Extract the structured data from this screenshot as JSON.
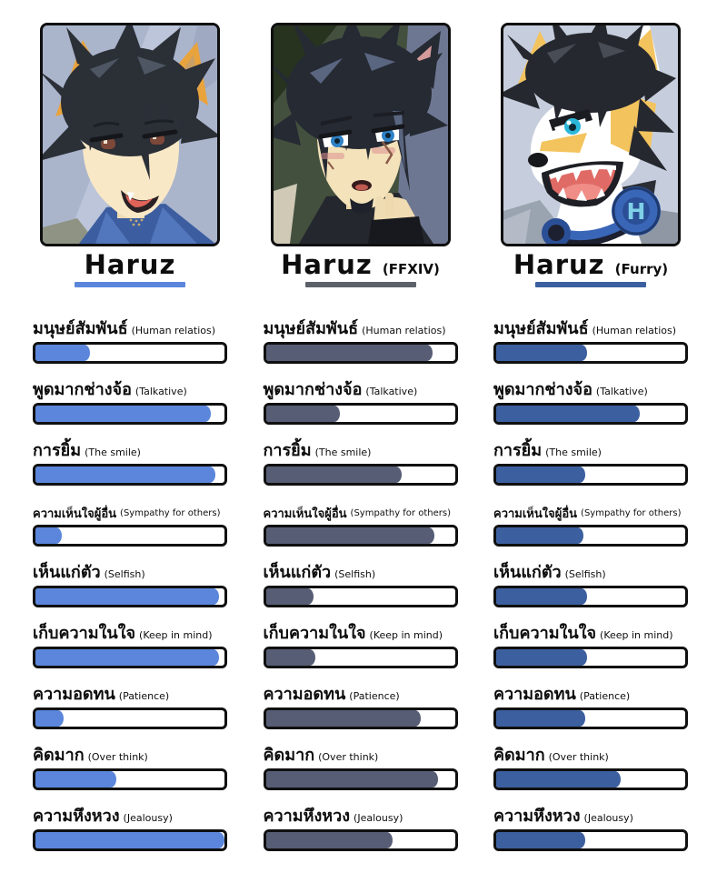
{
  "chart_data": {
    "type": "bar",
    "categories": [
      "มนุษย์สัมพันธ์ (Human relatios)",
      "พูดมากช่างจ้อ (Talkative)",
      "การยิ้ม (The smile)",
      "ความเห็นใจผู้อื่น (Sympathy for others)",
      "เห็นแก่ตัว (Selfish)",
      "เก็บความในใจ (Keep in mind)",
      "ความอดทน (Patience)",
      "คิดมาก (Over think)",
      "ความหึงหวง (Jealousy)"
    ],
    "series": [
      {
        "name": "Haruz",
        "values": [
          29,
          93,
          95,
          14,
          97,
          97,
          15,
          43,
          100
        ]
      },
      {
        "name": "Haruz (FFXIV)",
        "values": [
          88,
          39,
          72,
          89,
          25,
          26,
          82,
          91,
          67
        ]
      },
      {
        "name": "Haruz (Furry)",
        "values": [
          48,
          76,
          47,
          46,
          48,
          48,
          47,
          66,
          47
        ]
      }
    ],
    "ylim": [
      0,
      100
    ],
    "legend_position": "column-headers",
    "grid": false
  },
  "stats": [
    {
      "thai": "มนุษย์สัมพันธ์",
      "english": "(Human relatios)"
    },
    {
      "thai": "พูดมากช่างจ้อ",
      "english": "(Talkative)"
    },
    {
      "thai": "การยิ้ม",
      "english": "(The smile)"
    },
    {
      "thai": "ความเห็นใจผู้อื่น",
      "english": "(Sympathy for others)"
    },
    {
      "thai": "เห็นแก่ตัว",
      "english": "(Selfish)"
    },
    {
      "thai": "เก็บความในใจ",
      "english": "(Keep in mind)"
    },
    {
      "thai": "ความอดทน",
      "english": "(Patience)"
    },
    {
      "thai": "คิดมาก",
      "english": "(Over think)"
    },
    {
      "thai": "ความหึงหวง",
      "english": "(Jealousy)"
    }
  ],
  "columns": [
    {
      "name": "Haruz",
      "variant": "",
      "accent_color": "#5b86dc",
      "underline_color": "#5b86dc",
      "values": [
        29,
        93,
        95,
        14,
        97,
        97,
        15,
        43,
        100
      ]
    },
    {
      "name": "Haruz",
      "variant": "(FFXIV)",
      "accent_color": "#565d74",
      "underline_color": "#5d6169",
      "values": [
        88,
        39,
        72,
        89,
        25,
        26,
        82,
        91,
        67
      ]
    },
    {
      "name": "Haruz",
      "variant": "(Furry)",
      "accent_color": "#3c5f9f",
      "underline_color": "#3c5f9f",
      "values": [
        48,
        76,
        47,
        46,
        48,
        48,
        47,
        66,
        47
      ]
    }
  ],
  "portraits": {
    "furry": {
      "headphone_letter": "H"
    }
  }
}
